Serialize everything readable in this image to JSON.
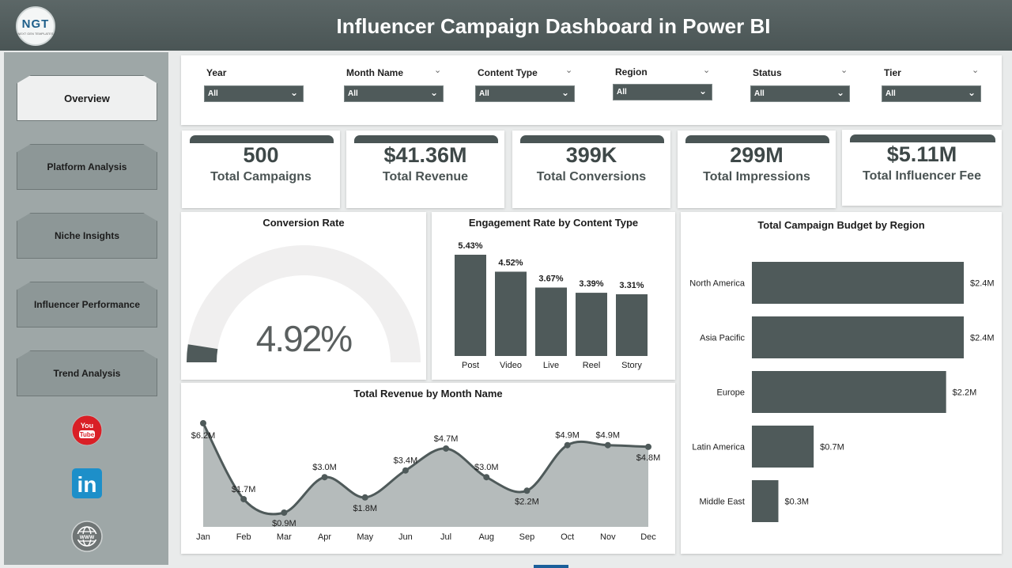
{
  "header": {
    "logo_text": "NGT",
    "logo_sub": "NEXT GEN TEMPLATES",
    "title": "Influencer Campaign Dashboard in Power BI"
  },
  "sidebar": {
    "items": [
      {
        "label": "Overview",
        "active": true
      },
      {
        "label": "Platform Analysis",
        "active": false
      },
      {
        "label": "Niche Insights",
        "active": false
      },
      {
        "label": "Influencer Performance",
        "active": false
      },
      {
        "label": "Trend Analysis",
        "active": false
      }
    ],
    "social": [
      "youtube-icon",
      "linkedin-icon",
      "globe-icon"
    ],
    "youtube_text": "You Tube",
    "linkedin_text": "in"
  },
  "filters": [
    {
      "label": "Year",
      "value": "All"
    },
    {
      "label": "Month Name",
      "value": "All"
    },
    {
      "label": "Content Type",
      "value": "All"
    },
    {
      "label": "Region",
      "value": "All"
    },
    {
      "label": "Status",
      "value": "All"
    },
    {
      "label": "Tier",
      "value": "All"
    }
  ],
  "kpis": [
    {
      "value": "500",
      "label": "Total Campaigns"
    },
    {
      "value": "$41.36M",
      "label": "Total Revenue"
    },
    {
      "value": "399K",
      "label": "Total Conversions"
    },
    {
      "value": "299M",
      "label": "Total Impressions"
    },
    {
      "value": "$5.11M",
      "label": "Total Influencer Fee"
    }
  ],
  "colors": {
    "primary": "#4f5a5a",
    "header": "#526060",
    "gauge_track": "#f0efef",
    "area_fill": "#b5bbbb"
  },
  "chart_data": [
    {
      "type": "gauge",
      "title": "Conversion Rate",
      "value": 4.92,
      "display": "4.92%",
      "range": [
        0,
        100
      ]
    },
    {
      "type": "bar",
      "title": "Engagement Rate by Content Type",
      "categories": [
        "Post",
        "Video",
        "Live",
        "Reel",
        "Story"
      ],
      "values": [
        5.43,
        4.52,
        3.67,
        3.39,
        3.31
      ],
      "labels": [
        "5.43%",
        "4.52%",
        "3.67%",
        "3.39%",
        "3.31%"
      ]
    },
    {
      "type": "bar",
      "orientation": "horizontal",
      "title": "Total Campaign Budget by Region",
      "categories": [
        "North America",
        "Asia Pacific",
        "Europe",
        "Latin America",
        "Middle East"
      ],
      "values": [
        2.4,
        2.4,
        2.2,
        0.7,
        0.3
      ],
      "labels": [
        "$2.4M",
        "$2.4M",
        "$2.2M",
        "$0.7M",
        "$0.3M"
      ]
    },
    {
      "type": "area",
      "title": "Total Revenue by Month Name",
      "categories": [
        "Jan",
        "Feb",
        "Mar",
        "Apr",
        "May",
        "Jun",
        "Jul",
        "Aug",
        "Sep",
        "Oct",
        "Nov",
        "Dec"
      ],
      "values": [
        6.2,
        1.7,
        0.9,
        3.0,
        1.8,
        3.4,
        4.7,
        3.0,
        2.2,
        4.9,
        4.9,
        4.8
      ],
      "labels": [
        "$6.2M",
        "$1.7M",
        "$0.9M",
        "$3.0M",
        "$1.8M",
        "$3.4M",
        "$4.7M",
        "$3.0M",
        "$2.2M",
        "$4.9M",
        "$4.9M",
        "$4.8M"
      ]
    }
  ]
}
